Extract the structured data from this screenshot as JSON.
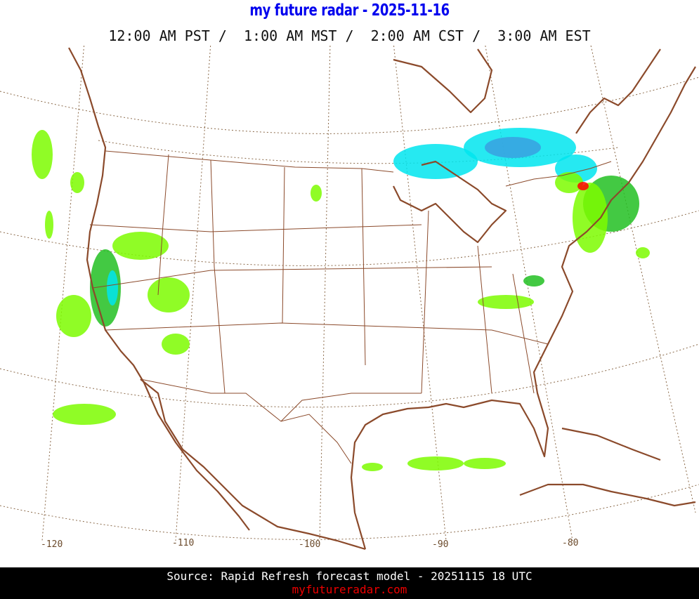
{
  "header": {
    "title": "my future radar - 2025-11-16",
    "times": "12:00 AM PST /  1:00 AM MST /  2:00 AM CST /  3:00 AM EST"
  },
  "map": {
    "longitude_labels": [
      "-120",
      "-110",
      "-100",
      "-90",
      "-80"
    ],
    "colors": {
      "border": "#8b4a2b",
      "grid": "#8b6a4a",
      "rain_light": "#7cfc00",
      "rain_moderate": "#22c022",
      "snow": "#00e5ee",
      "snow_heavy": "#3aa0e0",
      "heavy": "#ff0000"
    }
  },
  "footer": {
    "source": "Source: Rapid Refresh forecast model - 20251115 18 UTC",
    "site": "myfutureradar.com"
  }
}
